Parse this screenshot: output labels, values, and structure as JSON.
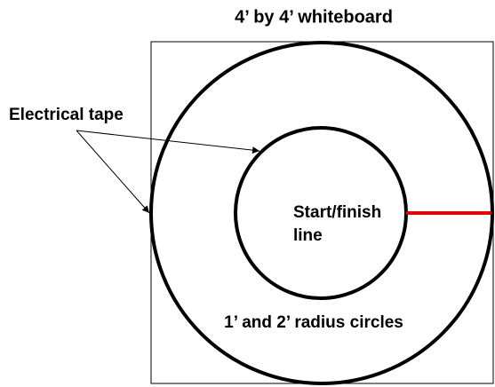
{
  "title": "4’ by 4’ whiteboard",
  "labels": {
    "tape": "Electrical tape",
    "start_finish": [
      "Start/finish",
      "line"
    ],
    "circles": "1’ and 2’ radius circles"
  }
}
